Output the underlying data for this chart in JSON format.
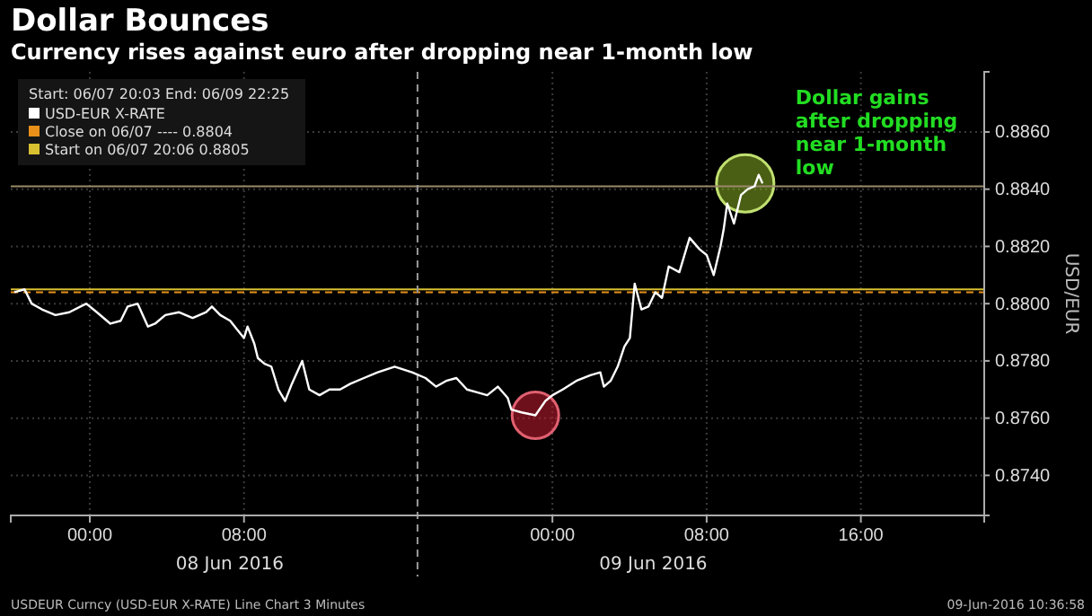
{
  "chart_data": {
    "type": "line",
    "title": "Dollar Bounces",
    "subtitle": "Currency rises against euro after dropping near 1-month low",
    "ylabel": "USD/EUR",
    "legend_title": "Start: 06/07 20:03 End: 06/09 22:25",
    "legend": "top left",
    "grid": true,
    "marker": "none",
    "line_style": "solid",
    "xlim": [
      "2016-06-07T19:54",
      "2016-06-09T22:24"
    ],
    "xticks": [
      {
        "value": "2016-06-08T00:00",
        "label": "00:00"
      },
      {
        "value": "2016-06-08T08:00",
        "label": "08:00"
      },
      {
        "value": "2016-06-09T00:00",
        "label": "00:00"
      },
      {
        "value": "2016-06-09T08:00",
        "label": "08:00"
      },
      {
        "value": "2016-06-09T16:00",
        "label": "16:00"
      }
    ],
    "ylim": [
      0.8726,
      0.8881
    ],
    "yticks": [
      {
        "value": 0.874,
        "label": "0.8740"
      },
      {
        "value": 0.876,
        "label": "0.8760"
      },
      {
        "value": 0.878,
        "label": "0.8780"
      },
      {
        "value": 0.88,
        "label": "0.8800"
      },
      {
        "value": 0.882,
        "label": "0.8820"
      },
      {
        "value": 0.884,
        "label": "0.8840"
      },
      {
        "value": 0.886,
        "label": "0.8860"
      }
    ],
    "series": [
      {
        "name": "USD-EUR X-RATE",
        "color": "#ffffff",
        "x": [
          "2016-06-07T20:05",
          "2016-06-07T20:37",
          "2016-06-07T20:59",
          "2016-06-07T21:31",
          "2016-06-07T22:13",
          "2016-06-07T22:56",
          "2016-06-07T23:49",
          "2016-06-08T00:22",
          "2016-06-08T01:04",
          "2016-06-08T01:36",
          "2016-06-08T01:58",
          "2016-06-08T02:29",
          "2016-06-08T03:01",
          "2016-06-08T03:23",
          "2016-06-08T03:55",
          "2016-06-08T04:37",
          "2016-06-08T05:20",
          "2016-06-08T06:02",
          "2016-06-08T06:20",
          "2016-06-08T06:46",
          "2016-06-08T07:17",
          "2016-06-08T07:38",
          "2016-06-08T08:00",
          "2016-06-08T08:11",
          "2016-06-08T08:32",
          "2016-06-08T08:43",
          "2016-06-08T09:04",
          "2016-06-08T09:25",
          "2016-06-08T09:47",
          "2016-06-08T10:08",
          "2016-06-08T10:29",
          "2016-06-08T11:01",
          "2016-06-08T11:23",
          "2016-06-08T11:55",
          "2016-06-08T12:26",
          "2016-06-08T12:59",
          "2016-06-08T13:31",
          "2016-06-08T14:13",
          "2016-06-08T14:56",
          "2016-06-08T15:49",
          "2016-06-08T16:43",
          "2016-06-08T17:25",
          "2016-06-08T17:58",
          "2016-06-08T18:29",
          "2016-06-08T19:01",
          "2016-06-08T19:34",
          "2016-06-08T20:05",
          "2016-06-08T20:37",
          "2016-06-08T21:10",
          "2016-06-08T21:41",
          "2016-06-08T21:52",
          "2016-06-08T22:24",
          "2016-06-08T23:07",
          "2016-06-08T23:38",
          "2016-06-09T00:00",
          "2016-06-09T00:32",
          "2016-06-09T01:14",
          "2016-06-09T01:58",
          "2016-06-09T02:29",
          "2016-06-09T02:40",
          "2016-06-09T03:01",
          "2016-06-09T03:23",
          "2016-06-09T03:44",
          "2016-06-09T04:01",
          "2016-06-09T04:16",
          "2016-06-09T04:37",
          "2016-06-09T04:59",
          "2016-06-09T05:20",
          "2016-06-09T05:41",
          "2016-06-09T06:02",
          "2016-06-09T06:35",
          "2016-06-09T07:07",
          "2016-06-09T07:38",
          "2016-06-09T08:00",
          "2016-06-09T08:22",
          "2016-06-09T08:43",
          "2016-06-09T08:53",
          "2016-06-09T09:04",
          "2016-06-09T09:25",
          "2016-06-09T09:47",
          "2016-06-09T10:08",
          "2016-06-09T10:29",
          "2016-06-09T10:42",
          "2016-06-09T10:54"
        ],
        "values": [
          0.8804,
          0.8805,
          0.88,
          0.8798,
          0.8796,
          0.8797,
          0.88,
          0.8797,
          0.8793,
          0.8794,
          0.8799,
          0.88,
          0.8792,
          0.8793,
          0.8796,
          0.8797,
          0.8795,
          0.8797,
          0.8799,
          0.8796,
          0.8794,
          0.8791,
          0.8788,
          0.8792,
          0.8786,
          0.8781,
          0.8779,
          0.8778,
          0.877,
          0.8766,
          0.8772,
          0.878,
          0.877,
          0.8768,
          0.877,
          0.877,
          0.8772,
          0.8774,
          0.8776,
          0.8778,
          0.8776,
          0.8774,
          0.8771,
          0.8773,
          0.8774,
          0.877,
          0.8769,
          0.8768,
          0.8771,
          0.8767,
          0.8763,
          0.8762,
          0.8761,
          0.8766,
          0.8768,
          0.877,
          0.8773,
          0.8775,
          0.8776,
          0.8771,
          0.8773,
          0.8778,
          0.8785,
          0.8788,
          0.8807,
          0.8798,
          0.8799,
          0.8804,
          0.8802,
          0.8813,
          0.8811,
          0.8823,
          0.8819,
          0.8817,
          0.881,
          0.882,
          0.8826,
          0.8835,
          0.8828,
          0.8838,
          0.884,
          0.8841,
          0.8845,
          0.8842
        ]
      }
    ],
    "ref_lines": [
      {
        "axis": "y",
        "value": 0.8804,
        "label": "Close on 06/07 ---- 0.8804",
        "color": "#e8901a",
        "line_style": "dashed"
      },
      {
        "axis": "y",
        "value": 0.8805,
        "label": "Start on 06/07 20:06 0.8805",
        "color": "#d8c030",
        "line_style": "solid"
      },
      {
        "axis": "y",
        "value": 0.8841,
        "color": "#9a8a6a",
        "line_style": "solid"
      },
      {
        "axis": "x",
        "value": "2016-06-08T17:00",
        "color": "#9a9a9a",
        "line_style": "dashed"
      }
    ],
    "annotations": [
      {
        "text": "Dollar gains after dropping near 1-month low",
        "x": "2016-06-09T10:00",
        "y": 0.8842
      },
      "08 Jun 2016",
      "09 Jun 2016",
      "USDEUR Curncy (USD-EUR X-RATE) Line Chart 3 Minutes",
      "09-Jun-2016 10:36:58"
    ]
  }
}
